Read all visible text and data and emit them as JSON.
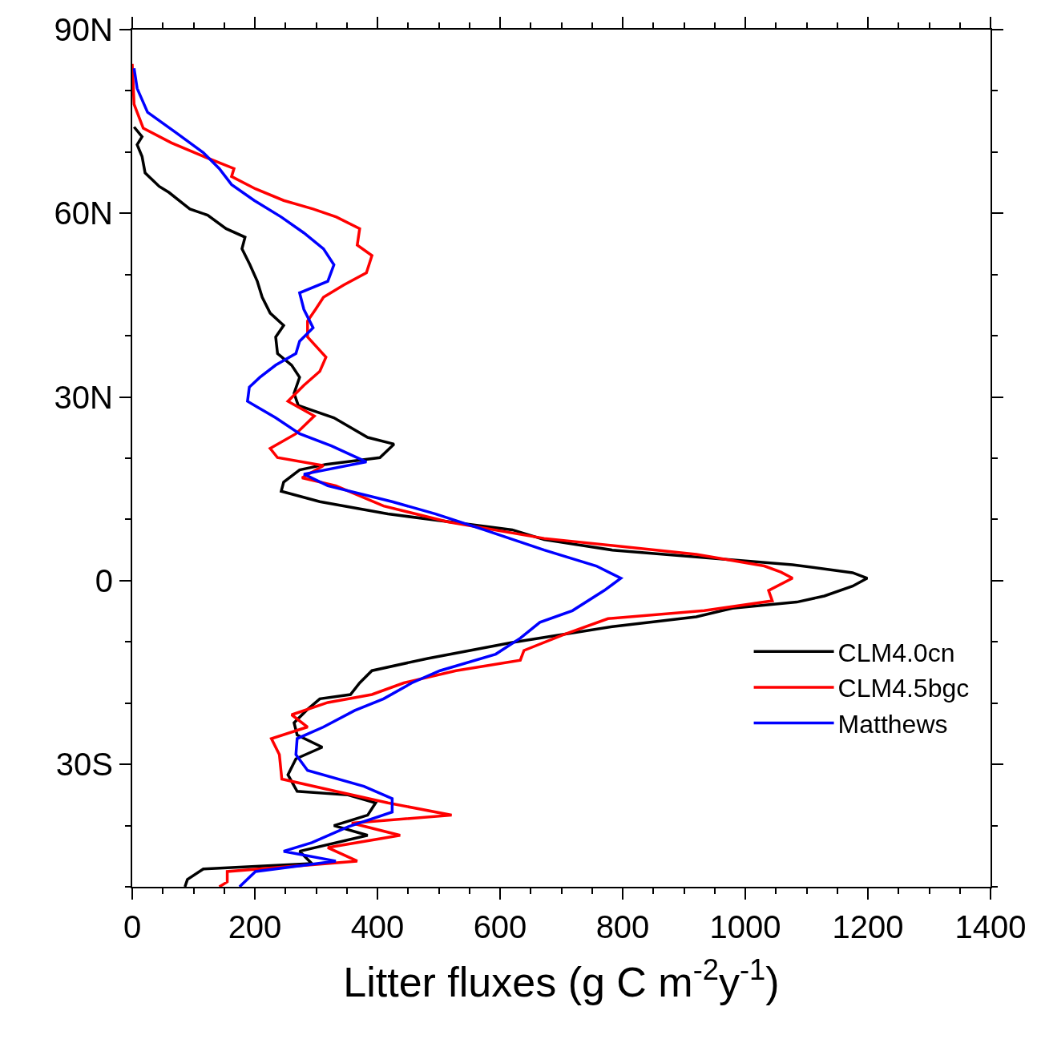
{
  "chart_data": {
    "type": "line",
    "xlabel": "Litter fluxes (g C m$^{-2}$y$^{-1}$)",
    "xlim": [
      0,
      1400
    ],
    "xticks": [
      0,
      200,
      400,
      600,
      800,
      1000,
      1200,
      1400
    ],
    "ylim": [
      -50,
      90
    ],
    "yticks": [
      {
        "value": 90,
        "label": "90N"
      },
      {
        "value": 60,
        "label": "60N"
      },
      {
        "value": 30,
        "label": "30N"
      },
      {
        "value": 0,
        "label": "0"
      },
      {
        "value": -30,
        "label": "30S"
      }
    ],
    "grid": false,
    "legend": "bottom right",
    "line_style": "solid",
    "marker": "none",
    "series": [
      {
        "name": "CLM4.0cn",
        "color": "#000000",
        "x": [
          3,
          16,
          8,
          16,
          21,
          44,
          60,
          94,
          123,
          153,
          184,
          179,
          192,
          204,
          212,
          225,
          247,
          234,
          237,
          260,
          273,
          264,
          271,
          329,
          384,
          427,
          404,
          316,
          273,
          247,
          243,
          306,
          417,
          620,
          672,
          783,
          1077,
          1175,
          1199,
          1175,
          1129,
          1084,
          979,
          920,
          783,
          620,
          482,
          391,
          371,
          356,
          306,
          284,
          264,
          269,
          310,
          267,
          254,
          269,
          352,
          397,
          384,
          329,
          384,
          273,
          293,
          116,
          90,
          86
        ],
        "values": [
          74.1,
          72.5,
          71.2,
          69.3,
          66.6,
          64.4,
          63.4,
          60.7,
          59.7,
          57.5,
          56.1,
          54.2,
          51.6,
          48.9,
          46.3,
          43.7,
          41.7,
          39.8,
          37.1,
          35.2,
          33.2,
          30.6,
          28.6,
          26.6,
          23.4,
          22.3,
          20.1,
          19.0,
          18.1,
          16.1,
          14.6,
          12.9,
          10.9,
          8.3,
          6.7,
          5.0,
          2.6,
          1.3,
          0.4,
          -0.9,
          -2.5,
          -3.5,
          -4.5,
          -5.9,
          -7.5,
          -10.1,
          -12.7,
          -14.7,
          -16.7,
          -18.6,
          -19.3,
          -21.2,
          -23.2,
          -25.2,
          -27.2,
          -29.1,
          -31.7,
          -34.4,
          -35.0,
          -36.3,
          -38.3,
          -40.0,
          -41.6,
          -44.2,
          -46.2,
          -47.1,
          -48.8,
          -50
        ]
      },
      {
        "name": "CLM4.5bgc",
        "color": "#ff0000",
        "x": [
          0,
          3,
          18,
          64,
          116,
          166,
          162,
          201,
          247,
          295,
          333,
          371,
          367,
          391,
          382,
          345,
          312,
          299,
          286,
          286,
          316,
          306,
          280,
          254,
          297,
          267,
          225,
          237,
          312,
          277,
          332,
          410,
          515,
          672,
          920,
          1031,
          1058,
          1077,
          1038,
          1044,
          933,
          776,
          704,
          639,
          633,
          528,
          443,
          391,
          319,
          260,
          286,
          227,
          240,
          244,
          332,
          417,
          521,
          358,
          437,
          319,
          367,
          155,
          155,
          142
        ],
        "values": [
          84.4,
          77.8,
          73.9,
          71.5,
          69.3,
          67.3,
          66.0,
          64.0,
          62.1,
          60.7,
          59.4,
          57.5,
          54.8,
          53.1,
          50.3,
          48.3,
          46.3,
          44.3,
          42.4,
          39.8,
          36.5,
          34.2,
          31.9,
          29.3,
          26.9,
          24.0,
          21.6,
          20.1,
          18.8,
          16.8,
          15.5,
          12.2,
          9.6,
          6.9,
          4.3,
          2.4,
          1.4,
          0.4,
          -1.6,
          -3.3,
          -4.9,
          -6.2,
          -8.8,
          -11.4,
          -13.0,
          -14.7,
          -16.7,
          -18.6,
          -19.9,
          -21.9,
          -23.9,
          -25.8,
          -28.4,
          -32.4,
          -34.4,
          -36.3,
          -38.3,
          -39.6,
          -41.6,
          -43.6,
          -45.8,
          -47.5,
          -49.2,
          -50
        ]
      },
      {
        "name": "Matthews",
        "color": "#0000ff",
        "x": [
          3,
          8,
          25,
          71,
          116,
          142,
          162,
          199,
          243,
          280,
          312,
          329,
          319,
          273,
          280,
          295,
          273,
          267,
          234,
          208,
          191,
          188,
          234,
          273,
          325,
          382,
          280,
          319,
          424,
          495,
          574,
          672,
          757,
          797,
          770,
          718,
          665,
          633,
          593,
          502,
          456,
          410,
          363,
          312,
          269,
          267,
          286,
          378,
          424,
          424,
          352,
          293,
          247,
          332,
          201,
          175
        ],
        "values": [
          83.7,
          80.4,
          76.5,
          73.2,
          69.9,
          67.3,
          64.7,
          62.1,
          59.4,
          56.8,
          54.2,
          51.6,
          48.9,
          47.0,
          44.3,
          41.3,
          39.1,
          37.1,
          35.2,
          33.2,
          31.6,
          29.3,
          26.6,
          24.0,
          22.0,
          19.4,
          17.4,
          15.5,
          12.9,
          10.9,
          8.3,
          5.0,
          2.4,
          0.4,
          -1.6,
          -4.9,
          -6.8,
          -9.4,
          -12.0,
          -14.7,
          -16.7,
          -19.3,
          -21.2,
          -23.9,
          -25.8,
          -28.4,
          -31.0,
          -33.6,
          -35.6,
          -37.8,
          -40.2,
          -42.8,
          -44.2,
          -45.8,
          -47.5,
          -50
        ]
      }
    ]
  }
}
